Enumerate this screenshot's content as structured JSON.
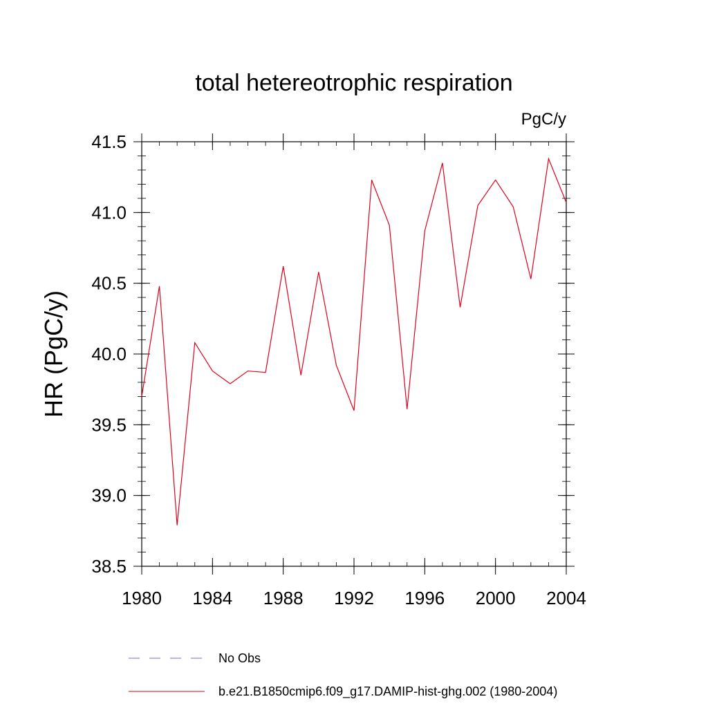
{
  "chart_data": {
    "type": "line",
    "title": "total hetereotrophic respiration",
    "units_label": "PgC/y",
    "ylabel": "HR  (PgC/y)",
    "xlabel": "",
    "xlim": [
      1980,
      2004
    ],
    "ylim": [
      38.5,
      41.5
    ],
    "x_ticks": [
      1980,
      1984,
      1988,
      1992,
      1996,
      2000,
      2004
    ],
    "y_ticks": [
      "38.5",
      "39.0",
      "39.5",
      "40.0",
      "40.5",
      "41.0",
      "41.5"
    ],
    "grid": false,
    "legend_position": "bottom",
    "series": [
      {
        "name": "No Obs",
        "color": "#7b68c8",
        "style": "dashed",
        "x": [],
        "y": []
      },
      {
        "name": "b.e21.B1850cmip6.f09_g17.DAMIP-hist-ghg.002 (1980-2004)",
        "color": "#e0001a",
        "style": "solid",
        "x": [
          1980,
          1981,
          1982,
          1983,
          1984,
          1985,
          1986,
          1987,
          1988,
          1989,
          1990,
          1991,
          1992,
          1993,
          1994,
          1995,
          1996,
          1997,
          1998,
          1999,
          2000,
          2001,
          2002,
          2003,
          2004
        ],
        "y": [
          39.7,
          40.48,
          38.79,
          40.08,
          39.88,
          39.79,
          39.88,
          39.87,
          40.62,
          39.85,
          40.58,
          39.92,
          39.6,
          41.23,
          40.91,
          39.61,
          40.87,
          41.35,
          40.33,
          41.05,
          41.23,
          41.04,
          40.53,
          41.38,
          41.07
        ]
      }
    ]
  }
}
